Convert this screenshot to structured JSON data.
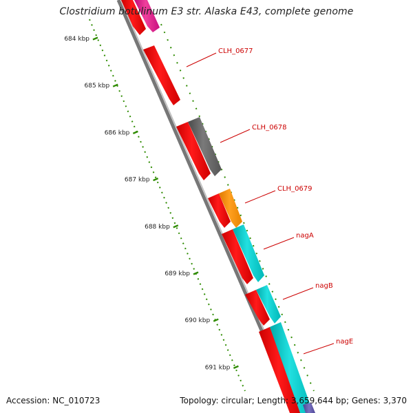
{
  "title": "Clostridium botulinum E3 str. Alaska E43, complete genome",
  "footer": {
    "accession": "Accession: NC_010723",
    "summary": "Topology: circular; Length: 3,659,644 bp; Genes: 3,370"
  },
  "ruler_ticks": [
    {
      "kbp": 684,
      "label": "684 kbp"
    },
    {
      "kbp": 685,
      "label": "685 kbp"
    },
    {
      "kbp": 686,
      "label": "686 kbp"
    },
    {
      "kbp": 687,
      "label": "687 kbp"
    },
    {
      "kbp": 688,
      "label": "688 kbp"
    },
    {
      "kbp": 689,
      "label": "689 kbp"
    },
    {
      "kbp": 690,
      "label": "690 kbp"
    },
    {
      "kbp": 691,
      "label": "691 kbp"
    }
  ],
  "gene_labels": [
    "CLH_0677",
    "CLH_0678",
    "CLH_0679",
    "nagA",
    "nagB",
    "nagE"
  ],
  "colors": {
    "cds_forward": "#ff0000",
    "outer_gray": "#666666",
    "outer_orange": "#ff8c00",
    "outer_cyan": "#00cccc",
    "outer_magenta": "#e0138c",
    "outer_purple": "#5f57a6",
    "backbone": "#808080",
    "label_red": "#cc0000",
    "ruler_green": "#2e8b00"
  }
}
